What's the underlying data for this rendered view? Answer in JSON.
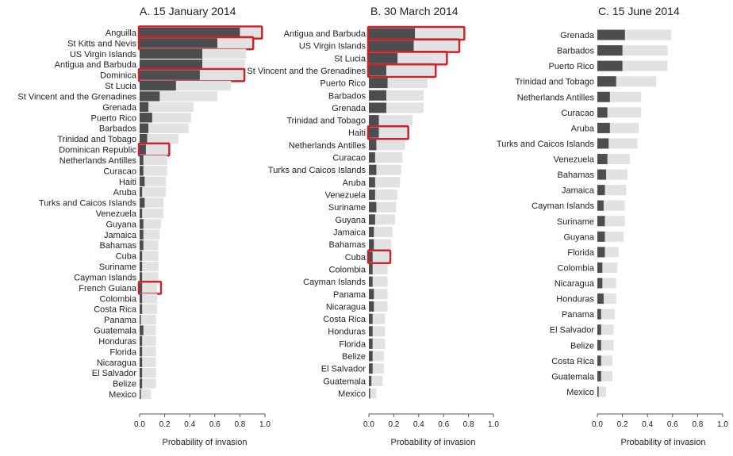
{
  "colors": {
    "baseline": "#4d4d4f",
    "upper": "#e2e2e4",
    "highlight": "#c8242b",
    "axis": "#555555"
  },
  "chart_data": [
    {
      "type": "bar",
      "orientation": "horizontal",
      "stacked_overlay": true,
      "title": "A. 15 January  2014",
      "xlabel": "Probability of invasion",
      "xlim": [
        0,
        1
      ],
      "xticks": [
        "0.0",
        "0.2",
        "0.4",
        "0.6",
        "0.8",
        "1.0"
      ],
      "categories": [
        "Anguilla",
        "St Kitts and Nevis",
        "US Virgin Islands",
        "Antigua and Barbuda",
        "Dominica",
        "St Lucia",
        "St Vincent and the Grenadines",
        "Grenada",
        "Puerto Rico",
        "Barbados",
        "Trinidad and Tobago",
        "Dominican Republic",
        "Netherlands Antilles",
        "Curacao",
        "Haiti",
        "Aruba",
        "Turks and Caicos Islands",
        "Venezuela",
        "Guyana",
        "Jamaica",
        "Bahamas",
        "Cuba",
        "Suriname",
        "Cayman Islands",
        "French Guiana",
        "Colombia",
        "Costa Rica",
        "Panama",
        "Guatemala",
        "Honduras",
        "Florida",
        "Nicaragua",
        "El Salvador",
        "Belize",
        "Mexico"
      ],
      "series": [
        {
          "values": [
            0.8,
            0.62,
            0.5,
            0.5,
            0.48,
            0.29,
            0.16,
            0.07,
            0.1,
            0.07,
            0.06,
            0.05,
            0.03,
            0.03,
            0.04,
            0.02,
            0.04,
            0.02,
            0.03,
            0.03,
            0.03,
            0.02,
            0.02,
            0.02,
            0.02,
            0.02,
            0.02,
            0.01,
            0.03,
            0.02,
            0.02,
            0.02,
            0.02,
            0.02,
            0.01
          ]
        },
        {
          "values": [
            0.97,
            0.9,
            0.85,
            0.84,
            0.83,
            0.73,
            0.62,
            0.43,
            0.41,
            0.39,
            0.31,
            0.23,
            0.22,
            0.22,
            0.21,
            0.21,
            0.19,
            0.19,
            0.17,
            0.16,
            0.15,
            0.15,
            0.15,
            0.15,
            0.14,
            0.14,
            0.14,
            0.13,
            0.13,
            0.13,
            0.13,
            0.13,
            0.13,
            0.13,
            0.09
          ]
        }
      ],
      "highlighted": [
        "Anguilla",
        "St Kitts and Nevis",
        "Dominica",
        "Dominican Republic",
        "French Guiana"
      ]
    },
    {
      "type": "bar",
      "orientation": "horizontal",
      "stacked_overlay": true,
      "title": "B. 30 March 2014",
      "xlabel": "Probability of invasion",
      "xlim": [
        0,
        1
      ],
      "xticks": [
        "0.0",
        "0.2",
        "0.4",
        "0.6",
        "0.8",
        "1.0"
      ],
      "categories": [
        "Antigua and Barbuda",
        "US Virgin Islands",
        "St Lucia",
        "St Vincent and the Grenadines",
        "Puerto Rico",
        "Barbados",
        "Grenada",
        "Trinidad and Tobago",
        "Haiti",
        "Netherlands Antilles",
        "Curacao",
        "Turks and Caicos Islands",
        "Aruba",
        "Venezuela",
        "Suriname",
        "Guyana",
        "Jamaica",
        "Bahamas",
        "Cuba",
        "Colombia",
        "Cayman Islands",
        "Panama",
        "Nicaragua",
        "Costa Rica",
        "Honduras",
        "Florida",
        "Belize",
        "El Salvador",
        "Guatemala",
        "Mexico"
      ],
      "series": [
        {
          "values": [
            0.37,
            0.36,
            0.23,
            0.14,
            0.15,
            0.14,
            0.14,
            0.08,
            0.08,
            0.06,
            0.05,
            0.06,
            0.05,
            0.05,
            0.06,
            0.05,
            0.04,
            0.04,
            0.03,
            0.03,
            0.03,
            0.04,
            0.04,
            0.03,
            0.03,
            0.03,
            0.03,
            0.03,
            0.02,
            0.01
          ]
        },
        {
          "values": [
            0.76,
            0.72,
            0.62,
            0.53,
            0.47,
            0.44,
            0.44,
            0.35,
            0.31,
            0.29,
            0.27,
            0.26,
            0.25,
            0.23,
            0.22,
            0.21,
            0.19,
            0.18,
            0.16,
            0.15,
            0.15,
            0.15,
            0.15,
            0.13,
            0.13,
            0.13,
            0.12,
            0.12,
            0.11,
            0.06
          ]
        }
      ],
      "highlighted": [
        "Antigua and Barbuda",
        "US Virgin Islands",
        "St Lucia",
        "St Vincent and the Grenadines",
        "Haiti",
        "Cuba"
      ]
    },
    {
      "type": "bar",
      "orientation": "horizontal",
      "stacked_overlay": true,
      "title": "C. 15 June 2014",
      "xlabel": "Probability of invasion",
      "xlim": [
        0,
        1
      ],
      "xticks": [
        "0.0",
        "0.2",
        "0.4",
        "0.6",
        "0.8",
        "1.0"
      ],
      "categories": [
        "Grenada",
        "Barbados",
        "Puerto Rico",
        "Trinidad and Tobago",
        "Netherlands Antilles",
        "Curacao",
        "Aruba",
        "Turks and Caicos Islands",
        "Venezuela",
        "Bahamas",
        "Jamaica",
        "Cayman Islands",
        "Suriname",
        "Guyana",
        "Florida",
        "Colombia",
        "Nicaragua",
        "Honduras",
        "Panama",
        "El Salvador",
        "Belize",
        "Costa Rica",
        "Guatemala",
        "Mexico"
      ],
      "series": [
        {
          "values": [
            0.22,
            0.2,
            0.2,
            0.15,
            0.1,
            0.08,
            0.1,
            0.09,
            0.08,
            0.07,
            0.06,
            0.05,
            0.06,
            0.06,
            0.06,
            0.04,
            0.04,
            0.05,
            0.03,
            0.03,
            0.03,
            0.03,
            0.03,
            0.01
          ]
        },
        {
          "values": [
            0.59,
            0.56,
            0.56,
            0.47,
            0.35,
            0.35,
            0.33,
            0.32,
            0.26,
            0.24,
            0.23,
            0.22,
            0.22,
            0.21,
            0.17,
            0.16,
            0.15,
            0.15,
            0.14,
            0.13,
            0.13,
            0.12,
            0.12,
            0.07
          ]
        }
      ],
      "highlighted": []
    }
  ]
}
